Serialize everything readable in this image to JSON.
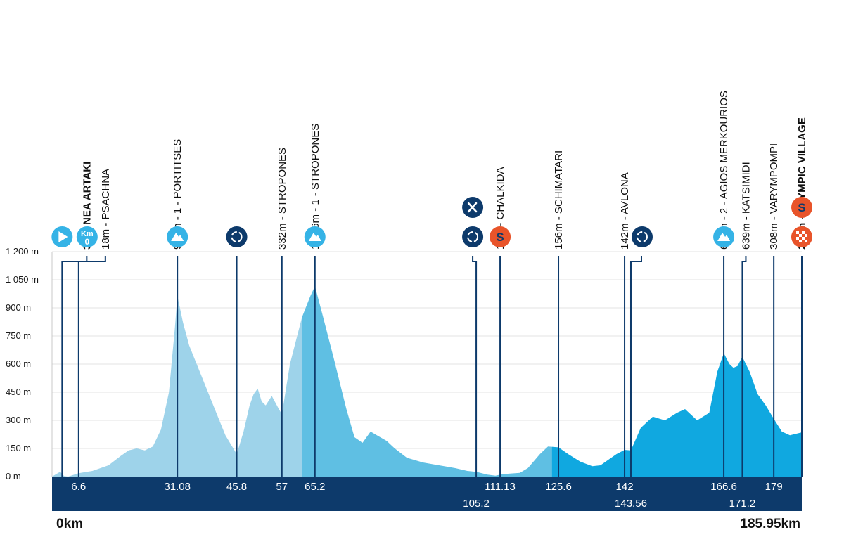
{
  "colors": {
    "navy": "#0d3a6b",
    "profile_light": "#9ed3ea",
    "profile_mid": "#5fbfe3",
    "profile_dark": "#10a8e0",
    "icon_blue": "#35b3e6",
    "sprint_orange": "#e8542a",
    "grid": "#e3e3e3"
  },
  "chart_data": {
    "type": "area",
    "total_distance_km": 185.95,
    "start_label": "0km",
    "end_label": "185.95km",
    "y_ticks": [
      {
        "value": 0,
        "label": "0 m"
      },
      {
        "value": 150,
        "label": "150 m"
      },
      {
        "value": 300,
        "label": "300 m"
      },
      {
        "value": 450,
        "label": "450 m"
      },
      {
        "value": 600,
        "label": "600 m"
      },
      {
        "value": 750,
        "label": "750 m"
      },
      {
        "value": 900,
        "label": "900 m"
      },
      {
        "value": 1050,
        "label": "1 050 m"
      },
      {
        "value": 1200,
        "label": "1 200 m"
      }
    ],
    "ylim": [
      0,
      1200
    ],
    "grid": true,
    "profile": [
      [
        0,
        0
      ],
      [
        2,
        25
      ],
      [
        3,
        3
      ],
      [
        4,
        0
      ],
      [
        6.6,
        18
      ],
      [
        10,
        30
      ],
      [
        14,
        60
      ],
      [
        17,
        110
      ],
      [
        19,
        140
      ],
      [
        21,
        150
      ],
      [
        23,
        140
      ],
      [
        25,
        160
      ],
      [
        27,
        250
      ],
      [
        29,
        450
      ],
      [
        30.5,
        800
      ],
      [
        31.08,
        963
      ],
      [
        32.5,
        820
      ],
      [
        34,
        700
      ],
      [
        37,
        540
      ],
      [
        40,
        380
      ],
      [
        43,
        220
      ],
      [
        45.8,
        120
      ],
      [
        47.5,
        240
      ],
      [
        49,
        380
      ],
      [
        50,
        440
      ],
      [
        51,
        470
      ],
      [
        52,
        400
      ],
      [
        53,
        380
      ],
      [
        54.5,
        430
      ],
      [
        56,
        370
      ],
      [
        57,
        332
      ],
      [
        59,
        600
      ],
      [
        62,
        850
      ],
      [
        64,
        960
      ],
      [
        65.2,
        1016
      ],
      [
        67,
        870
      ],
      [
        70,
        620
      ],
      [
        73,
        360
      ],
      [
        75,
        210
      ],
      [
        77,
        180
      ],
      [
        79,
        240
      ],
      [
        81,
        215
      ],
      [
        83,
        190
      ],
      [
        85,
        150
      ],
      [
        88,
        100
      ],
      [
        92,
        75
      ],
      [
        96,
        60
      ],
      [
        100,
        45
      ],
      [
        103,
        30
      ],
      [
        105.2,
        25
      ],
      [
        108,
        10
      ],
      [
        110,
        5
      ],
      [
        111.13,
        10
      ],
      [
        113,
        15
      ],
      [
        116,
        20
      ],
      [
        118,
        45
      ],
      [
        121,
        120
      ],
      [
        123,
        160
      ],
      [
        125.6,
        156
      ],
      [
        128,
        120
      ],
      [
        131,
        80
      ],
      [
        134,
        55
      ],
      [
        136,
        60
      ],
      [
        138,
        90
      ],
      [
        140,
        120
      ],
      [
        142,
        142
      ],
      [
        143.56,
        140
      ],
      [
        146,
        260
      ],
      [
        149,
        320
      ],
      [
        152,
        300
      ],
      [
        155,
        340
      ],
      [
        157,
        360
      ],
      [
        160,
        300
      ],
      [
        163,
        340
      ],
      [
        165,
        560
      ],
      [
        166.6,
        658
      ],
      [
        168,
        600
      ],
      [
        169,
        580
      ],
      [
        170,
        590
      ],
      [
        171.2,
        639
      ],
      [
        173,
        560
      ],
      [
        175,
        440
      ],
      [
        177,
        380
      ],
      [
        179,
        308
      ],
      [
        181,
        240
      ],
      [
        183,
        220
      ],
      [
        185.95,
        236
      ]
    ],
    "section_colors": [
      {
        "from": 0,
        "to": 62,
        "color": "#9ed3ea"
      },
      {
        "from": 62,
        "to": 124,
        "color": "#5fbfe3"
      },
      {
        "from": 124,
        "to": 185.95,
        "color": "#10a8e0"
      }
    ],
    "markers": [
      {
        "km": 2.5,
        "label": "3m - NEA ARTAKI",
        "bold": true,
        "icon": "start",
        "elbow": true
      },
      {
        "km": 6.6,
        "label": "18m - PSACHNA",
        "bold": false,
        "icon": "km0",
        "elbow": true
      },
      {
        "km": 31.08,
        "label": "963m - 1 - PORTITSES",
        "bold": false,
        "icon": "climb"
      },
      {
        "km": 45.8,
        "label": "",
        "bold": false,
        "icon": "feed"
      },
      {
        "km": 57,
        "label": "332m - STROPONES",
        "bold": false,
        "icon": ""
      },
      {
        "km": 65.2,
        "label": "1 016m - 1 - STROPONES",
        "bold": false,
        "icon": "climb"
      },
      {
        "km": 105.2,
        "label": "",
        "bold": false,
        "icon": "feed-food",
        "elbow": true
      },
      {
        "km": 111.13,
        "label": "10m - CHALKIDA",
        "bold": false,
        "icon": "sprint"
      },
      {
        "km": 125.6,
        "label": "156m - SCHIMATARI",
        "bold": false,
        "icon": ""
      },
      {
        "km": 142,
        "label": "142m - AVLONA",
        "bold": false,
        "icon": ""
      },
      {
        "km": 143.56,
        "label": "",
        "bold": false,
        "icon": "feed",
        "elbow": true
      },
      {
        "km": 166.6,
        "label": "658m - 2 - AGIOS MERKOURIOS",
        "bold": false,
        "icon": "climb"
      },
      {
        "km": 171.2,
        "label": "639m - KATSIMIDI",
        "bold": false,
        "icon": "",
        "elbow": true
      },
      {
        "km": 179,
        "label": "308m - VARYMPOMPI",
        "bold": false,
        "icon": ""
      },
      {
        "km": 185.95,
        "label": "236m - OLYMPIC VILLAGE",
        "bold": true,
        "icon": "finish"
      }
    ],
    "bottom_labels": [
      {
        "km": 6.6,
        "text": "6.6",
        "row": 1
      },
      {
        "km": 31.08,
        "text": "31.08",
        "row": 1
      },
      {
        "km": 45.8,
        "text": "45.8",
        "row": 1
      },
      {
        "km": 57,
        "text": "57",
        "row": 1
      },
      {
        "km": 65.2,
        "text": "65.2",
        "row": 1
      },
      {
        "km": 105.2,
        "text": "105.2",
        "row": 2
      },
      {
        "km": 111.13,
        "text": "111.13",
        "row": 1
      },
      {
        "km": 125.6,
        "text": "125.6",
        "row": 1
      },
      {
        "km": 142,
        "text": "142",
        "row": 1
      },
      {
        "km": 143.56,
        "text": "143.56",
        "row": 2
      },
      {
        "km": 166.6,
        "text": "166.6",
        "row": 1
      },
      {
        "km": 171.2,
        "text": "171.2",
        "row": 2
      },
      {
        "km": 179,
        "text": "179",
        "row": 1
      }
    ],
    "icon_labels": {
      "km0_top": "Km",
      "km0_bottom": "0",
      "sprint": "S"
    }
  }
}
